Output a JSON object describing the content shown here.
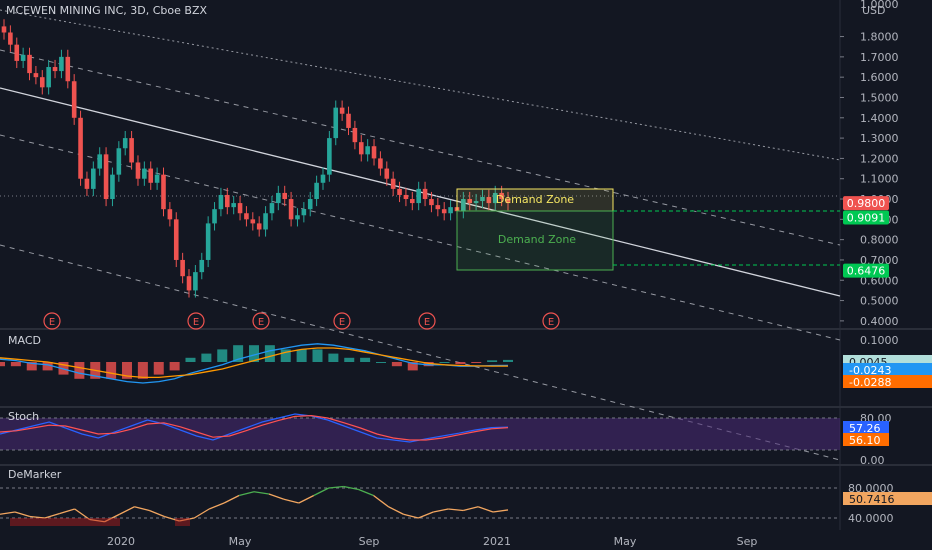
{
  "header": {
    "title": "MCEWEN MINING INC, 3D, Cboe BZX",
    "currency": "USD"
  },
  "colors": {
    "bg": "#131722",
    "up": "#26a69a",
    "down": "#ef5350",
    "grid": "#2a2e39",
    "text": "#b2b5be",
    "demand_yellow": "#f5e663",
    "demand_green": "#4caf50",
    "macd_line": "#2196f3",
    "signal_line": "#ff9800",
    "stoch_k": "#2962ff",
    "stoch_d": "#ff5252",
    "stoch_band": "#4b2a77",
    "demarker": "#f2a660",
    "demarker_high": "#4caf50",
    "demarker_low": "#b71c1c"
  },
  "chart_data": [
    {
      "type": "candlestick",
      "title": "MCEWEN MINING INC, 3D, Cboe BZX",
      "x_ticks": [
        "2020",
        "May",
        "Sep",
        "2021",
        "May",
        "Sep"
      ],
      "y_ticks": [
        "1.8000",
        "1.7000",
        "1.6000",
        "1.5000",
        "1.4000",
        "1.3000",
        "1.2000",
        "1.1000",
        "1.0000",
        "0.9000",
        "0.8000",
        "0.7000",
        "0.6000",
        "0.5000",
        "0.4000"
      ],
      "y_top_partial": "1.0000",
      "ylim": [
        0.36,
        1.98
      ],
      "price_tags": [
        {
          "label": "0.9800",
          "value": 0.98,
          "color": "#ef5350"
        },
        {
          "label": "0.9091",
          "value": 0.9091,
          "color": "#00c853"
        },
        {
          "label": "0.6476",
          "value": 0.6476,
          "color": "#00c853"
        }
      ],
      "zones": [
        {
          "label": "Demand Zone",
          "top": 0.98,
          "bottom": 0.9091,
          "color": "#f5e663"
        },
        {
          "label": "Demand Zone",
          "top": 0.9091,
          "bottom": 0.6476,
          "color": "#4caf50"
        }
      ],
      "earnings_markers": [
        "E",
        "E",
        "E",
        "E",
        "E",
        "E"
      ],
      "closes": [
        1.82,
        1.76,
        1.68,
        1.71,
        1.62,
        1.6,
        1.55,
        1.65,
        1.63,
        1.7,
        1.58,
        1.4,
        1.1,
        1.05,
        1.15,
        1.22,
        1.0,
        1.12,
        1.25,
        1.3,
        1.18,
        1.1,
        1.15,
        1.08,
        1.12,
        0.95,
        0.9,
        0.7,
        0.62,
        0.55,
        0.64,
        0.7,
        0.88,
        0.95,
        1.02,
        0.96,
        0.98,
        0.93,
        0.9,
        0.88,
        0.85,
        0.93,
        0.98,
        1.03,
        1.0,
        0.9,
        0.92,
        0.95,
        1.0,
        1.08,
        1.12,
        1.3,
        1.45,
        1.42,
        1.35,
        1.28,
        1.22,
        1.26,
        1.2,
        1.15,
        1.1,
        1.05,
        1.02,
        1.0,
        0.98,
        1.05,
        1.0,
        0.97,
        0.95,
        0.93,
        0.96,
        0.94,
        1.0,
        0.98,
        0.99,
        1.01,
        0.98,
        1.03,
        1.0,
        0.98
      ]
    },
    {
      "type": "line",
      "name": "MACD",
      "values_labels": [
        "0.0045",
        "-0.0243",
        "-0.0288"
      ],
      "series": [
        {
          "values": [
            0.02,
            0.01,
            -0.01,
            -0.02,
            -0.05,
            -0.08,
            -0.1,
            -0.12,
            -0.14,
            -0.15,
            -0.14,
            -0.12,
            -0.08,
            -0.05,
            -0.02,
            0.02,
            0.05,
            0.08,
            0.1,
            0.12,
            0.13,
            0.12,
            0.1,
            0.08,
            0.05,
            0.02,
            -0.01,
            -0.02,
            -0.02,
            -0.03,
            -0.03,
            -0.025,
            -0.024
          ]
        },
        {
          "values": [
            0.03,
            0.02,
            0.01,
            0.0,
            -0.02,
            -0.04,
            -0.06,
            -0.08,
            -0.1,
            -0.11,
            -0.11,
            -0.1,
            -0.09,
            -0.07,
            -0.05,
            -0.02,
            0.01,
            0.04,
            0.07,
            0.09,
            0.1,
            0.1,
            0.09,
            0.07,
            0.05,
            0.03,
            0.01,
            -0.01,
            -0.02,
            -0.025,
            -0.028,
            -0.029,
            -0.029
          ]
        }
      ]
    },
    {
      "type": "line",
      "name": "Stoch",
      "y_ticks": [
        "80.00",
        "0.00"
      ],
      "values_labels": [
        "57.26",
        "56.10"
      ],
      "series": [
        {
          "values": [
            40,
            50,
            60,
            70,
            55,
            40,
            30,
            45,
            60,
            75,
            65,
            50,
            35,
            25,
            40,
            55,
            70,
            80,
            90,
            85,
            75,
            60,
            45,
            30,
            25,
            20,
            28,
            35,
            42,
            50,
            56,
            57.26
          ]
        },
        {
          "values": [
            45,
            48,
            55,
            62,
            60,
            50,
            40,
            42,
            52,
            65,
            68,
            58,
            45,
            32,
            35,
            48,
            62,
            74,
            84,
            86,
            80,
            68,
            55,
            40,
            30,
            25,
            25,
            30,
            38,
            46,
            53,
            56.1
          ]
        }
      ]
    },
    {
      "type": "line",
      "name": "DeMarker",
      "y_ticks": [
        "80.0000",
        "40.0000"
      ],
      "values_labels": [
        "50.7416"
      ],
      "series": [
        {
          "values": [
            45,
            48,
            42,
            40,
            46,
            52,
            38,
            35,
            45,
            55,
            50,
            42,
            36,
            40,
            52,
            60,
            70,
            75,
            72,
            65,
            60,
            70,
            80,
            82,
            78,
            70,
            55,
            45,
            40,
            48,
            52,
            50,
            55,
            48,
            50.74
          ]
        }
      ]
    }
  ]
}
